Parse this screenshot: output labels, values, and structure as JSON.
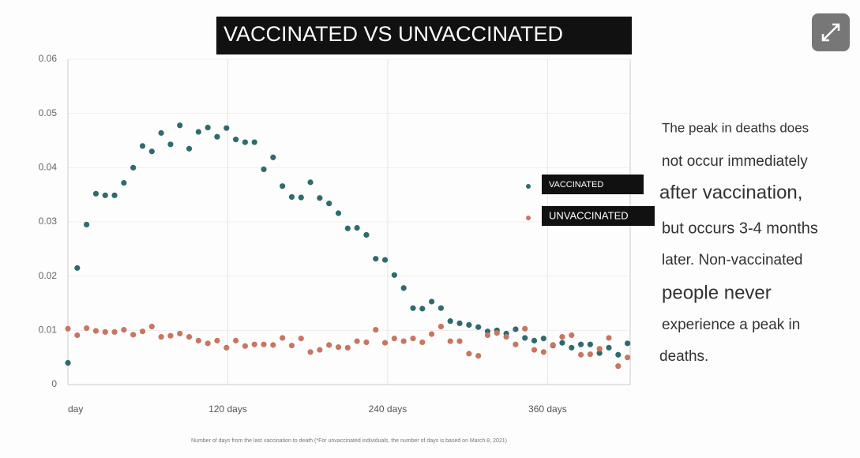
{
  "chart_data": {
    "type": "scatter",
    "title": "VACCINATED VS UNVACCINATED",
    "xlabel": "Number of days from the last vaccination to death (*For unvaccinated individuals, the number of days is based on March 8, 2021)",
    "x": [
      0,
      7,
      14,
      21,
      28,
      35,
      42,
      49,
      56,
      63,
      70,
      77,
      84,
      91,
      98,
      105,
      112,
      119,
      126,
      133,
      140,
      147,
      154,
      161,
      168,
      175,
      182,
      189,
      196,
      203,
      210,
      217,
      224,
      231,
      238,
      245,
      252,
      259,
      266,
      273,
      280,
      287,
      294,
      301,
      308,
      315,
      322,
      329,
      336,
      343,
      350,
      357,
      364,
      371,
      378,
      385,
      392,
      399,
      406,
      413,
      420
    ],
    "series": [
      {
        "name": "VACCINATED",
        "color": "#2f6b6e",
        "values": [
          0.004,
          0.0215,
          0.0295,
          0.0352,
          0.0349,
          0.0349,
          0.0372,
          0.04,
          0.044,
          0.043,
          0.0464,
          0.0443,
          0.0478,
          0.0435,
          0.0466,
          0.0474,
          0.0457,
          0.0473,
          0.0452,
          0.0447,
          0.0447,
          0.0397,
          0.0419,
          0.0366,
          0.0346,
          0.0345,
          0.0373,
          0.0344,
          0.0334,
          0.0316,
          0.0288,
          0.0289,
          0.0276,
          0.0232,
          0.023,
          0.0202,
          0.0178,
          0.0141,
          0.014,
          0.0153,
          0.0141,
          0.0117,
          0.0113,
          0.011,
          0.0106,
          0.0098,
          0.01,
          0.0094,
          0.0102,
          0.0086,
          0.0081,
          0.0085,
          0.0072,
          0.0077,
          0.0068,
          0.0074,
          0.0074,
          0.0058,
          0.0068,
          0.0055,
          0.0076
        ]
      },
      {
        "name": "UNVACCINATED",
        "color": "#c8765f",
        "values": [
          0.0103,
          0.0091,
          0.0104,
          0.0099,
          0.0097,
          0.0097,
          0.0101,
          0.0092,
          0.0098,
          0.0107,
          0.0088,
          0.009,
          0.0094,
          0.0088,
          0.0081,
          0.0076,
          0.0081,
          0.0068,
          0.0081,
          0.0071,
          0.0074,
          0.0074,
          0.0073,
          0.0086,
          0.0072,
          0.0085,
          0.006,
          0.0064,
          0.0073,
          0.0069,
          0.0068,
          0.008,
          0.0078,
          0.0101,
          0.0077,
          0.0085,
          0.008,
          0.0085,
          0.0078,
          0.0093,
          0.0107,
          0.008,
          0.008,
          0.0057,
          0.0053,
          0.0091,
          0.0095,
          0.0088,
          0.0074,
          0.0103,
          0.0064,
          0.006,
          0.0073,
          0.0088,
          0.0091,
          0.0055,
          0.0056,
          0.0066,
          0.0086,
          0.0034,
          0.005
        ]
      }
    ],
    "xlim": [
      0,
      422
    ],
    "xticks": [
      {
        "value": 0,
        "label": "day"
      },
      {
        "value": 120,
        "label": "120 days"
      },
      {
        "value": 240,
        "label": "240 days"
      },
      {
        "value": 360,
        "label": "360 days"
      }
    ],
    "ylim": [
      0,
      0.06
    ],
    "yticks": [
      0,
      0.01,
      0.02,
      0.03,
      0.04,
      0.05,
      0.06
    ],
    "grid": true,
    "legend": "right",
    "annotations": [
      "The peak in deaths does",
      "not occur immediately",
      "after vaccination,",
      "but occurs 3-4 months",
      "later. Non-vaccinated",
      "people never",
      "experience a peak in",
      "deaths."
    ]
  }
}
